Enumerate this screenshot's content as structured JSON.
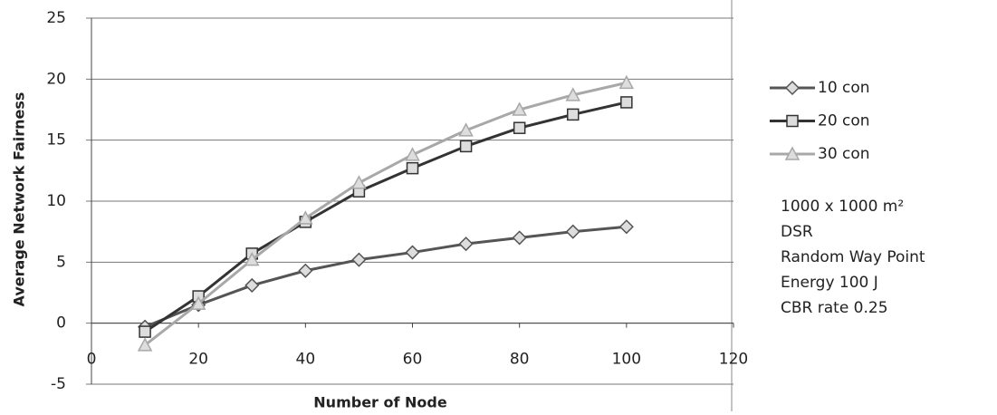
{
  "chart_data": {
    "type": "line",
    "x_label": "Number of Node",
    "y_label": "Average Network Fairness",
    "x": [
      10,
      20,
      30,
      40,
      50,
      60,
      70,
      80,
      90,
      100
    ],
    "series": [
      {
        "name": "10 con",
        "color": "#555555",
        "marker": "diamond",
        "values": [
          -0.3,
          1.5,
          3.1,
          4.3,
          5.2,
          5.8,
          6.5,
          7.0,
          7.5,
          7.9
        ]
      },
      {
        "name": "20 con",
        "color": "#333333",
        "marker": "square",
        "values": [
          -0.7,
          2.2,
          5.7,
          8.3,
          10.8,
          12.7,
          14.5,
          16.0,
          17.1,
          18.1
        ]
      },
      {
        "name": "30 con",
        "color": "#a8a8a8",
        "marker": "triangle",
        "values": [
          -1.8,
          1.6,
          5.2,
          8.6,
          11.5,
          13.8,
          15.8,
          17.5,
          18.7,
          19.7
        ]
      }
    ],
    "xlim": [
      0,
      120
    ],
    "xticks": [
      0,
      20,
      40,
      60,
      80,
      100,
      120
    ],
    "ylim": [
      -5,
      25
    ],
    "yticks": [
      -5,
      0,
      5,
      10,
      15,
      20,
      25
    ],
    "grid": true,
    "annotations": [
      "1000 x 1000 m²",
      "DSR",
      "Random Way Point",
      "Energy 100 J",
      "CBR rate 0.25"
    ]
  }
}
